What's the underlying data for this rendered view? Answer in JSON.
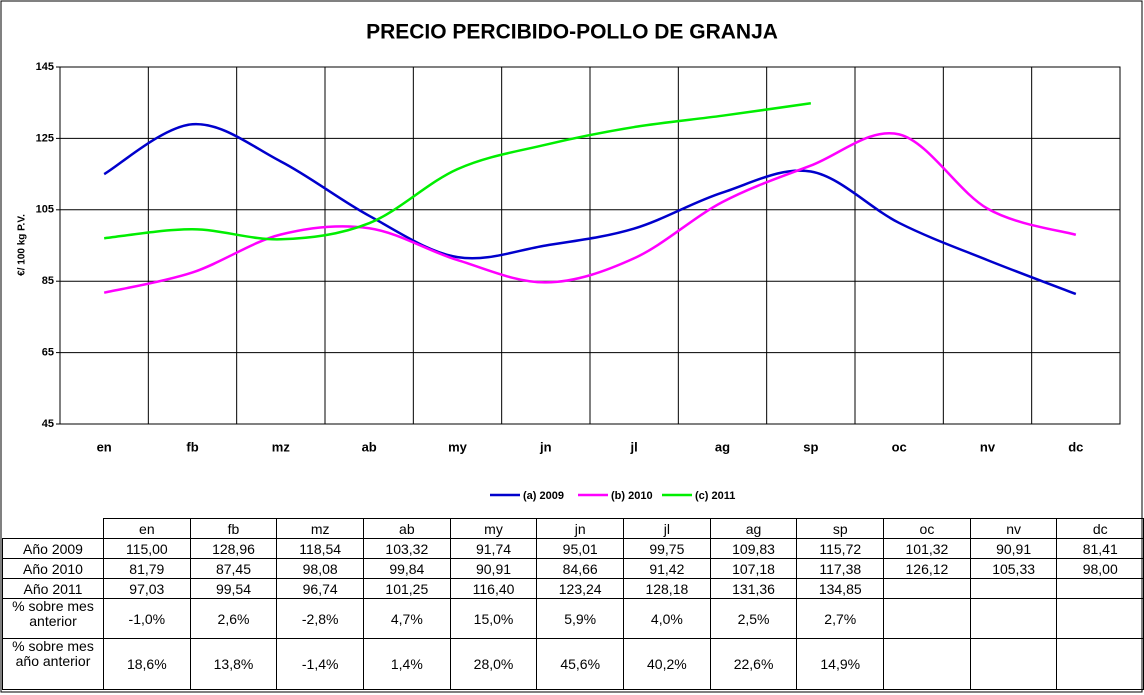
{
  "chart_data": {
    "type": "line",
    "title": "PRECIO PERCIBIDO-POLLO DE GRANJA",
    "y_label": "€/ 100 kg P.V.",
    "categories": [
      "en",
      "fb",
      "mz",
      "ab",
      "my",
      "jn",
      "jl",
      "ag",
      "sp",
      "oc",
      "nv",
      "dc"
    ],
    "ylim": [
      45,
      145
    ],
    "yticks": [
      45,
      65,
      85,
      105,
      125,
      145
    ],
    "grid": true,
    "legend": "bottom",
    "series": [
      {
        "name": "(a) 2009",
        "row_label": "Año 2009",
        "color": "#0000cc",
        "values": [
          115.0,
          128.96,
          118.54,
          103.32,
          91.74,
          95.01,
          99.75,
          109.83,
          115.72,
          101.32,
          90.91,
          81.41
        ],
        "value_labels": [
          "115,00",
          "128,96",
          "118,54",
          "103,32",
          "91,74",
          "95,01",
          "99,75",
          "109,83",
          "115,72",
          "101,32",
          "90,91",
          "81,41"
        ]
      },
      {
        "name": "(b) 2010",
        "row_label": "Año 2010",
        "color": "#ff00ff",
        "values": [
          81.79,
          87.45,
          98.08,
          99.84,
          90.91,
          84.66,
          91.42,
          107.18,
          117.38,
          126.12,
          105.33,
          98.0
        ],
        "value_labels": [
          "81,79",
          "87,45",
          "98,08",
          "99,84",
          "90,91",
          "84,66",
          "91,42",
          "107,18",
          "117,38",
          "126,12",
          "105,33",
          "98,00"
        ]
      },
      {
        "name": "(c) 2011",
        "row_label": "Año 2011",
        "color": "#00ee00",
        "values": [
          97.03,
          99.54,
          96.74,
          101.25,
          116.4,
          123.24,
          128.18,
          131.36,
          134.85,
          null,
          null,
          null
        ],
        "value_labels": [
          "97,03",
          "99,54",
          "96,74",
          "101,25",
          "116,40",
          "123,24",
          "128,18",
          "131,36",
          "134,85",
          null,
          null,
          null
        ]
      }
    ],
    "table_rows": [
      {
        "label": "% sobre mes anterior",
        "values": [
          -1.0,
          2.6,
          -2.8,
          4.7,
          15.0,
          5.9,
          4.0,
          2.5,
          2.7,
          null,
          null,
          null
        ],
        "value_labels": [
          "-1,0%",
          "2,6%",
          "-2,8%",
          "4,7%",
          "15,0%",
          "5,9%",
          "4,0%",
          "2,5%",
          "2,7%",
          null,
          null,
          null
        ]
      },
      {
        "label": "% sobre mes año anterior",
        "values": [
          18.6,
          13.8,
          -1.4,
          1.4,
          28.0,
          45.6,
          40.2,
          22.6,
          14.9,
          null,
          null,
          null
        ],
        "value_labels": [
          "18,6%",
          "13,8%",
          "-1,4%",
          "1,4%",
          "28,0%",
          "45,6%",
          "40,2%",
          "22,6%",
          "14,9%",
          null,
          null,
          null
        ]
      }
    ]
  }
}
